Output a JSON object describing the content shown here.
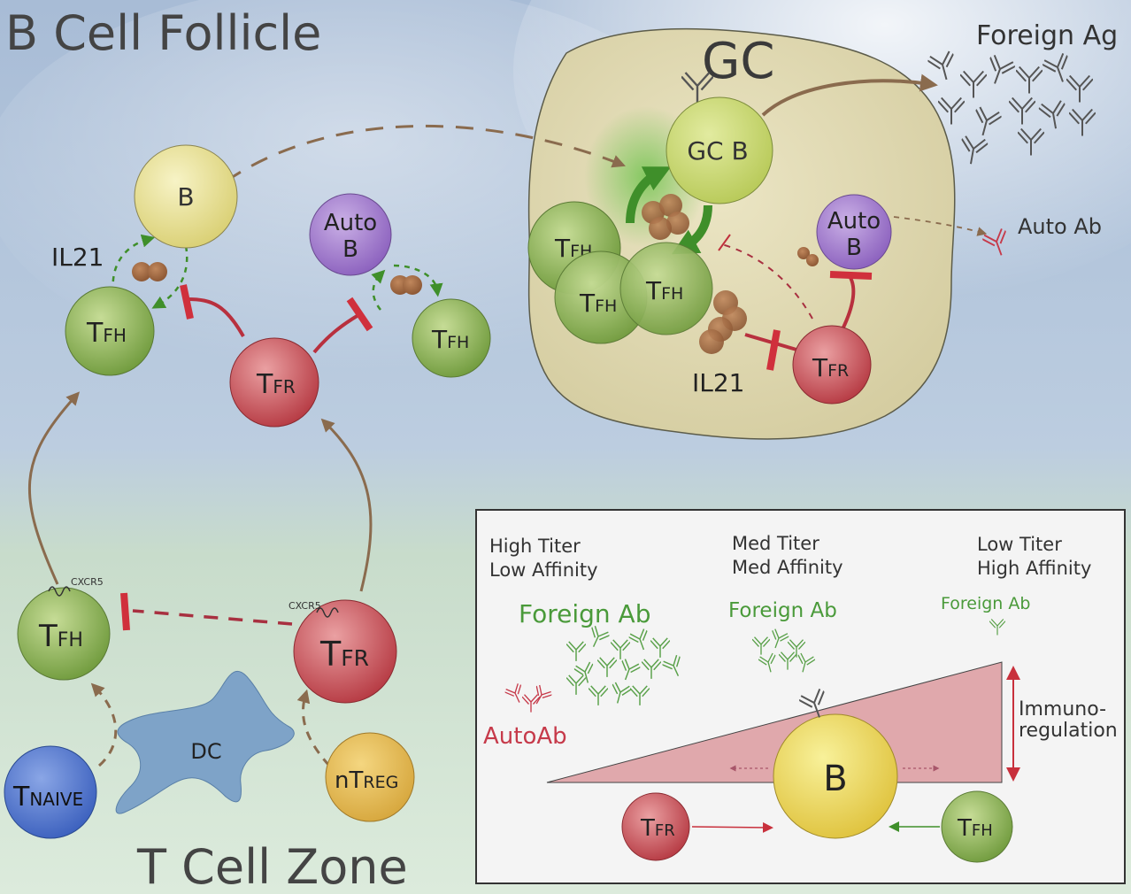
{
  "regions": {
    "follicle": "B Cell Follicle",
    "t_zone": "T Cell Zone",
    "gc": "GC"
  },
  "cells": {
    "b": "B",
    "auto_b_1": "Auto",
    "auto_b_2": "B",
    "tfh_main": "FH",
    "tfr_main": "FR",
    "gc_b": "GC B",
    "dc": "DC",
    "t_prefix": "T",
    "naive_sub": "NAIVE",
    "ntreg_prefix": "nT",
    "ntreg_sub": "REG"
  },
  "labels": {
    "il21_left": "IL21",
    "il21_gc": "IL21",
    "cxcr5_tfh": "CXCR5",
    "cxcr5_tfr": "CXCR5",
    "foreign_ag": "Foreign Ag",
    "auto_ab": "Auto Ab"
  },
  "inset": {
    "col1_line1": "High Titer",
    "col1_line2": "Low Affinity",
    "col2_line1": "Med Titer",
    "col2_line2": "Med Affinity",
    "col3_line1": "Low Titer",
    "col3_line2": "High Affinity",
    "foreign_ab_1": "Foreign Ab",
    "foreign_ab_2": "Foreign Ab",
    "foreign_ab_3": "Foreign Ab",
    "autoab": "AutoAb",
    "immuno_1": "Immuno-",
    "immuno_2": "regulation",
    "b": "B"
  },
  "colors": {
    "tfh": "#8ab04e",
    "tfr": "#c0434a",
    "b": "#e6df8a",
    "auto_b": "#9a72c4",
    "gc": "#ddd6b0",
    "dc": "#7ea3c8",
    "naive": "#4d73c8",
    "ntreg": "#ddb44a",
    "brown_arrow": "#8a6b4e",
    "inhibit": "#d0303c",
    "green_arrow": "#3f8f2a",
    "antibody_green": "#5aa14a",
    "antibody_red": "#c63a4a"
  }
}
